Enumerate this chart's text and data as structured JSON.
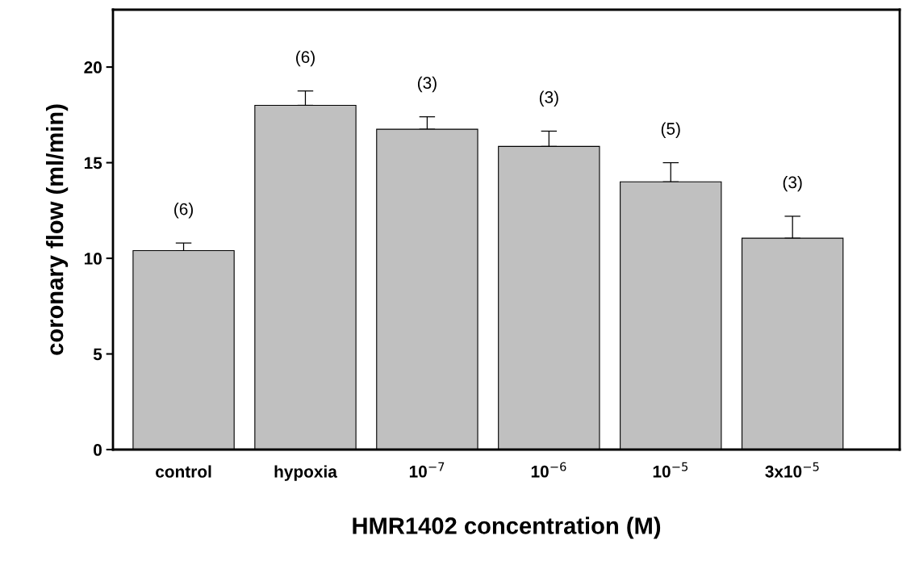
{
  "chart_data": {
    "type": "bar",
    "xlabel": "HMR1402 concentration (M)",
    "ylabel": "coronary flow (ml/min)",
    "categories": [
      "control",
      "hypoxia",
      "10$^{−7}$",
      "10$^{−6}$",
      "10$^{−5}$",
      "3x10$^{−5}$"
    ],
    "values": [
      10.4,
      18.0,
      16.75,
      15.85,
      14.0,
      11.05
    ],
    "errors": [
      [
        10.4,
        10.8
      ],
      [
        18.0,
        18.75
      ],
      [
        16.75,
        17.4
      ],
      [
        15.85,
        16.65
      ],
      [
        14.0,
        15.0
      ],
      [
        11.05,
        12.2
      ]
    ],
    "color": "#c0c0c0",
    "ylim": [
      0,
      23
    ],
    "yticks": [
      0,
      5,
      10,
      15,
      20
    ],
    "grid": false,
    "legend": false,
    "annotations": [
      "(6)",
      "(6)",
      "(3)",
      "(3)",
      "(5)",
      "(3)"
    ]
  }
}
